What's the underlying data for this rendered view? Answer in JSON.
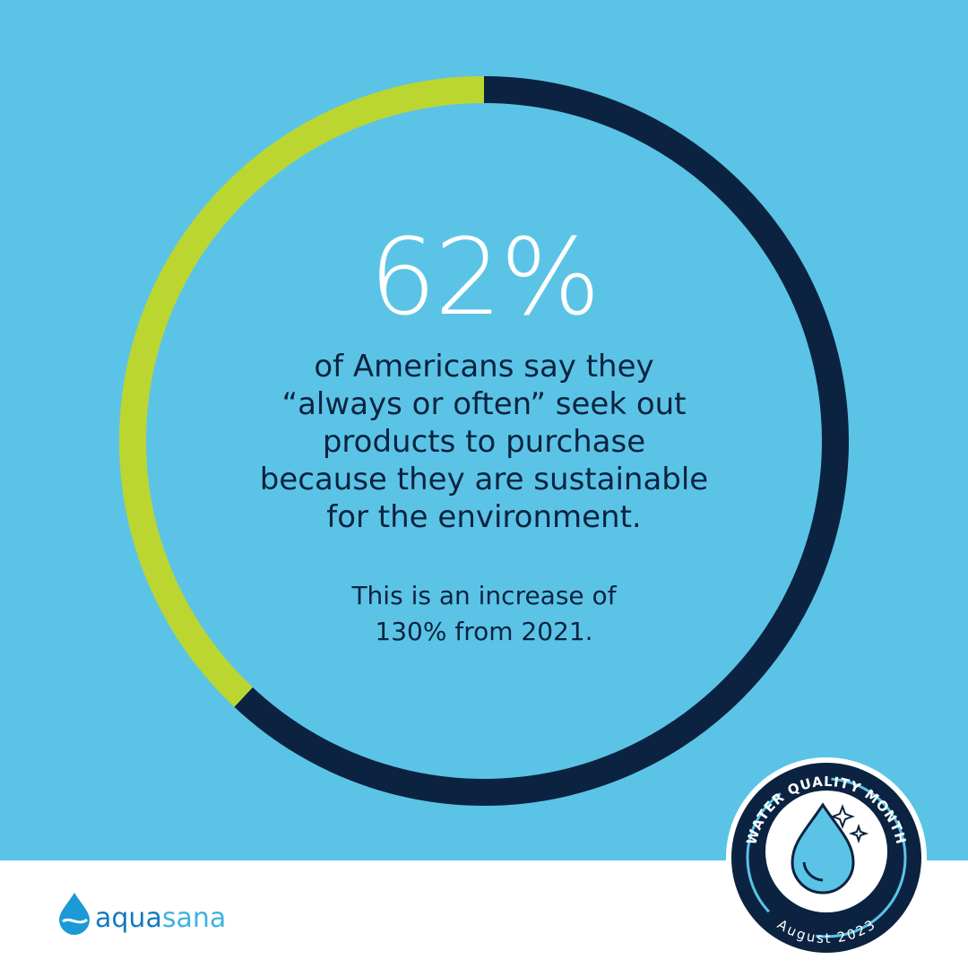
{
  "stat": {
    "value": 62,
    "label": "62%"
  },
  "ring": {
    "values": [
      62,
      38
    ],
    "colors": [
      "#0b2341",
      "#bcd631"
    ]
  },
  "body": [
    "of Americans say they",
    "“always or often” seek out",
    "products to purchase",
    "because they are sustainable",
    "for the environment."
  ],
  "note": [
    "This is an increase of",
    "130% from 2021."
  ],
  "logo": {
    "part_1": "aqua",
    "part_2": "sana"
  },
  "badge": {
    "top": "WATER QUALITY MONTH",
    "bottom": "August 2023"
  }
}
